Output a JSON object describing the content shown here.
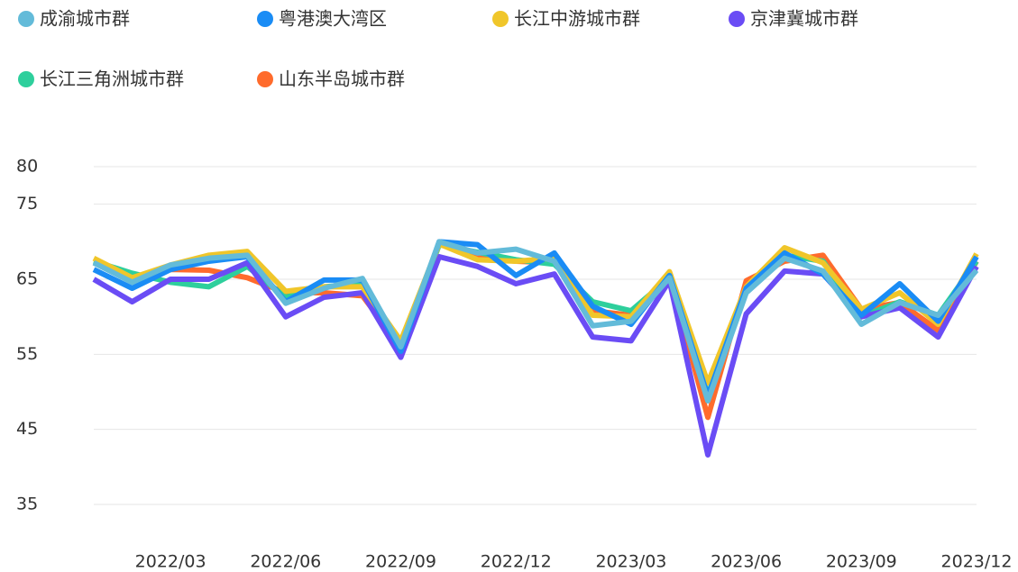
{
  "chart_data": {
    "type": "line",
    "categories": [
      null,
      null,
      "2022/03",
      null,
      null,
      "2022/06",
      null,
      null,
      "2022/09",
      null,
      null,
      "2022/12",
      null,
      null,
      "2023/03",
      null,
      null,
      "2023/06",
      null,
      null,
      "2023/09",
      null,
      null,
      "2023/12"
    ],
    "ylim": [
      35,
      80
    ],
    "yticks": [
      35,
      45,
      55,
      65,
      75,
      80
    ],
    "grid": true,
    "series": [
      {
        "name": "成渝城市群",
        "color": "#63bbd9",
        "values": [
          67.2,
          64.6,
          66.9,
          67.8,
          68.2,
          61.8,
          63.8,
          65.1,
          56,
          70,
          68.5,
          69,
          67.4,
          58.8,
          59.4,
          65.2,
          48.8,
          63.2,
          67.8,
          66.1,
          59,
          61.9,
          60.2,
          66.2
        ]
      },
      {
        "name": "粤港澳大湾区",
        "color": "#1a8cf5",
        "values": [
          66.3,
          63.8,
          66.3,
          67.4,
          68,
          62,
          64.9,
          64.9,
          55.4,
          70,
          69.6,
          65.5,
          68.5,
          61.4,
          59,
          65.5,
          49.4,
          63.8,
          68.5,
          65.7,
          60.2,
          64.4,
          59.4,
          68
        ]
      },
      {
        "name": "长江中游城市群",
        "color": "#f0c62a",
        "values": [
          67.8,
          65.2,
          66.9,
          68.2,
          68.7,
          63.4,
          64,
          64,
          56.8,
          69.7,
          67.6,
          67.4,
          67.8,
          60.2,
          60,
          66,
          51.2,
          64,
          69.2,
          67.2,
          61,
          63.2,
          59,
          68.4
        ]
      },
      {
        "name": "京津冀城市群",
        "color": "#6a4cf5",
        "values": [
          65,
          62,
          65,
          65,
          67.2,
          60,
          62.6,
          63.2,
          54.6,
          68,
          66.7,
          64.4,
          65.7,
          57.3,
          56.8,
          64.8,
          41.6,
          60.4,
          66.1,
          65.7,
          60,
          61.2,
          57.3,
          66.7
        ]
      },
      {
        "name": "长江三角洲城市群",
        "color": "#2ecf9c",
        "values": [
          67.4,
          65.8,
          64.6,
          64,
          66.7,
          62.6,
          64,
          64.4,
          55.6,
          69.6,
          68.6,
          67.6,
          67,
          62,
          60.8,
          65.2,
          49.6,
          63.6,
          68.2,
          67.4,
          60,
          62,
          60.2,
          67.4
        ]
      },
      {
        "name": "山东半岛城市群",
        "color": "#ff6b2c",
        "values": [
          67.2,
          65,
          66.3,
          66.2,
          65.2,
          63.2,
          63.2,
          62.8,
          56,
          69.8,
          68,
          67.4,
          67.2,
          60.8,
          60.2,
          65.5,
          46.6,
          64.8,
          67.4,
          68.2,
          61,
          61.9,
          58.2,
          67.4
        ]
      }
    ]
  }
}
